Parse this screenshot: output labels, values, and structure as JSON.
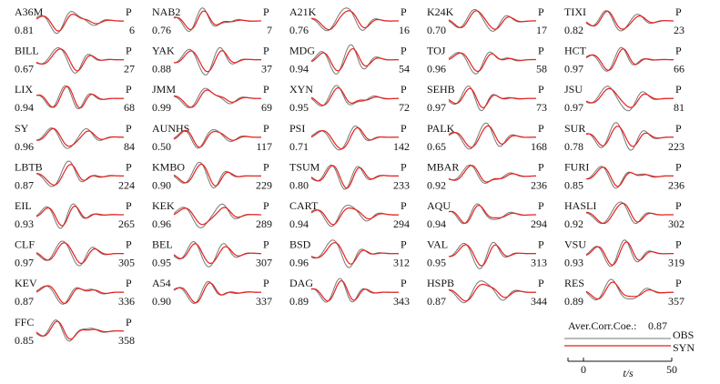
{
  "chart_data": {
    "type": "line",
    "phase_label": "P",
    "legend": {
      "caption": "Aver.Corr.Coe.:",
      "caption_value": "0.87",
      "entries": [
        {
          "name": "OBS",
          "color": "#777777"
        },
        {
          "name": "SYN",
          "color": "#e8201c"
        }
      ]
    },
    "time_axis": {
      "label": "t/s",
      "ticks": [
        0,
        50
      ],
      "range": [
        -10,
        50
      ]
    },
    "stations": [
      {
        "name": "A36M",
        "cc": "0.81",
        "azimuth": "6"
      },
      {
        "name": "NAB2",
        "cc": "0.76",
        "azimuth": "7"
      },
      {
        "name": "A21K",
        "cc": "0.76",
        "azimuth": "16"
      },
      {
        "name": "K24K",
        "cc": "0.70",
        "azimuth": "17"
      },
      {
        "name": "TIXI",
        "cc": "0.82",
        "azimuth": "23"
      },
      {
        "name": "BILL",
        "cc": "0.67",
        "azimuth": "27"
      },
      {
        "name": "YAK",
        "cc": "0.88",
        "azimuth": "37"
      },
      {
        "name": "MDG",
        "cc": "0.94",
        "azimuth": "54"
      },
      {
        "name": "TOJ",
        "cc": "0.96",
        "azimuth": "58"
      },
      {
        "name": "HCT",
        "cc": "0.97",
        "azimuth": "66"
      },
      {
        "name": "LIX",
        "cc": "0.94",
        "azimuth": "68"
      },
      {
        "name": "JMM",
        "cc": "0.99",
        "azimuth": "69"
      },
      {
        "name": "XYN",
        "cc": "0.95",
        "azimuth": "72"
      },
      {
        "name": "SEHB",
        "cc": "0.97",
        "azimuth": "73"
      },
      {
        "name": "JSU",
        "cc": "0.97",
        "azimuth": "81"
      },
      {
        "name": "SY",
        "cc": "0.96",
        "azimuth": "84"
      },
      {
        "name": "AUNHS",
        "cc": "0.50",
        "azimuth": "117"
      },
      {
        "name": "PSI",
        "cc": "0.71",
        "azimuth": "142"
      },
      {
        "name": "PALK",
        "cc": "0.65",
        "azimuth": "168"
      },
      {
        "name": "SUR",
        "cc": "0.78",
        "azimuth": "223"
      },
      {
        "name": "LBTB",
        "cc": "0.87",
        "azimuth": "224"
      },
      {
        "name": "KMBO",
        "cc": "0.90",
        "azimuth": "229"
      },
      {
        "name": "TSUM",
        "cc": "0.80",
        "azimuth": "233"
      },
      {
        "name": "MBAR",
        "cc": "0.92",
        "azimuth": "236"
      },
      {
        "name": "FURI",
        "cc": "0.85",
        "azimuth": "236"
      },
      {
        "name": "EIL",
        "cc": "0.93",
        "azimuth": "265"
      },
      {
        "name": "KEK",
        "cc": "0.96",
        "azimuth": "289"
      },
      {
        "name": "CART",
        "cc": "0.94",
        "azimuth": "294"
      },
      {
        "name": "AQU",
        "cc": "0.94",
        "azimuth": "294"
      },
      {
        "name": "HASLI",
        "cc": "0.92",
        "azimuth": "302"
      },
      {
        "name": "CLF",
        "cc": "0.97",
        "azimuth": "305"
      },
      {
        "name": "BEL",
        "cc": "0.95",
        "azimuth": "307"
      },
      {
        "name": "BSD",
        "cc": "0.96",
        "azimuth": "312"
      },
      {
        "name": "VAL",
        "cc": "0.95",
        "azimuth": "313"
      },
      {
        "name": "VSU",
        "cc": "0.93",
        "azimuth": "319"
      },
      {
        "name": "KEV",
        "cc": "0.87",
        "azimuth": "336"
      },
      {
        "name": "A54",
        "cc": "0.90",
        "azimuth": "337"
      },
      {
        "name": "DAG",
        "cc": "0.89",
        "azimuth": "343"
      },
      {
        "name": "HSPB",
        "cc": "0.87",
        "azimuth": "344"
      },
      {
        "name": "RES",
        "cc": "0.89",
        "azimuth": "357"
      },
      {
        "name": "FFC",
        "cc": "0.85",
        "azimuth": "358"
      }
    ]
  }
}
